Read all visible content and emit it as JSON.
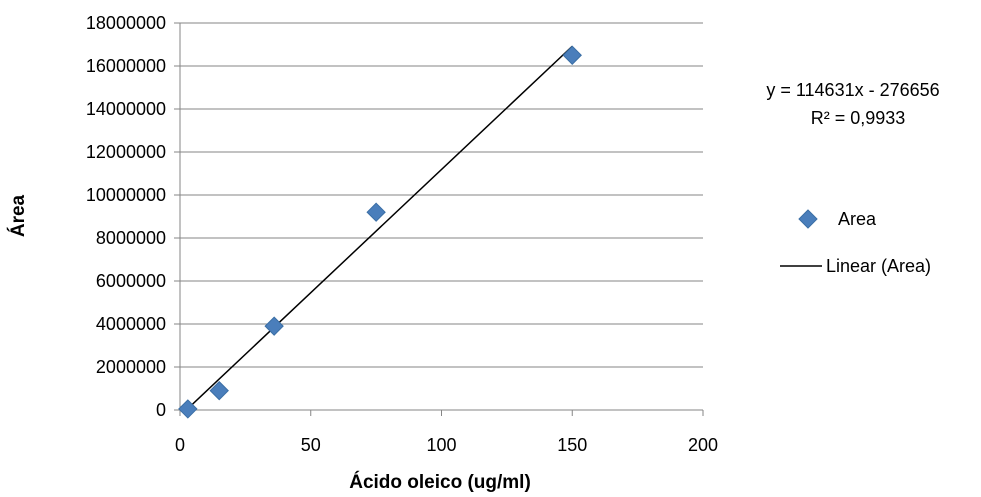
{
  "chart_data": {
    "type": "scatter",
    "xlabel": "Ácido oleico (ug/ml)",
    "ylabel": "Área",
    "xlim": [
      0,
      200
    ],
    "ylim": [
      0,
      18000000
    ],
    "xticks": [
      "0",
      "50",
      "100",
      "150",
      "200"
    ],
    "yticks": [
      "0",
      "2000000",
      "4000000",
      "6000000",
      "8000000",
      "10000000",
      "12000000",
      "14000000",
      "16000000",
      "18000000"
    ],
    "grid": "horizontal",
    "legend_position": "right",
    "series": [
      {
        "name": "Area",
        "marker": "diamond",
        "color": "#4a7ebb",
        "points": [
          {
            "x": 3,
            "y": 50000
          },
          {
            "x": 15,
            "y": 900000
          },
          {
            "x": 36,
            "y": 3900000
          },
          {
            "x": 75,
            "y": 9200000
          },
          {
            "x": 150,
            "y": 16500000
          }
        ]
      }
    ],
    "trendline": {
      "name": "Linear (Area)",
      "slope": 114631,
      "intercept": -276656,
      "x_range": [
        2.4,
        150
      ],
      "color": "#000000",
      "equation": "y = 114631x - 276656",
      "r_squared": "R² = 0,9933"
    }
  }
}
